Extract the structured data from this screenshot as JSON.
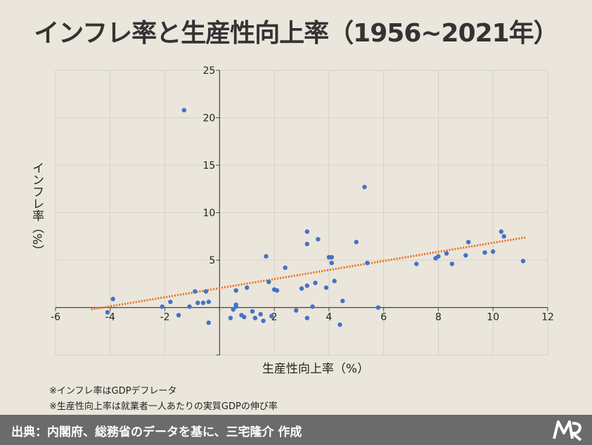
{
  "title": "インフレ率と生産性向上率（1956~2021年）",
  "notes": [
    "※インフレ率はGDPデフレータ",
    "※生産性向上率は就業者一人あたりの実質GDPの伸び率"
  ],
  "footer": {
    "source": "出典：内閣府、総務省のデータを基に、三宅隆介 作成"
  },
  "colors": {
    "background": "#ebe6dc",
    "grid": "#d6d1c6",
    "axis": "#444444",
    "point": "#4472c4",
    "trend": "#e8731c",
    "footer": "#6b6b6b"
  },
  "chart_data": {
    "type": "scatter",
    "xlabel": "生産性向上率（%）",
    "ylabel": "インフレ率（%）",
    "xlim": [
      -6,
      12
    ],
    "ylim": [
      -5,
      25
    ],
    "x_ticks": [
      -6,
      -4,
      -2,
      2,
      4,
      6,
      8,
      10,
      12
    ],
    "y_ticks": [
      5,
      10,
      15,
      20,
      25
    ],
    "grid": true,
    "trendline": {
      "style": "dotted",
      "from": [
        -4.7,
        -0.2
      ],
      "to": [
        11.2,
        7.4
      ]
    },
    "points": [
      [
        -4.1,
        -0.5
      ],
      [
        -3.9,
        0.9
      ],
      [
        -2.1,
        0.1
      ],
      [
        -1.8,
        0.6
      ],
      [
        -1.5,
        -0.8
      ],
      [
        -1.3,
        20.8
      ],
      [
        -1.1,
        0.1
      ],
      [
        -0.9,
        1.7
      ],
      [
        -0.8,
        0.5
      ],
      [
        -0.6,
        0.5
      ],
      [
        -0.5,
        1.7
      ],
      [
        -0.4,
        0.6
      ],
      [
        -0.4,
        -1.6
      ],
      [
        0.4,
        -1.1
      ],
      [
        0.5,
        -0.2
      ],
      [
        0.6,
        0.1
      ],
      [
        0.6,
        0.3
      ],
      [
        0.6,
        1.8
      ],
      [
        0.8,
        -0.8
      ],
      [
        0.9,
        -1.0
      ],
      [
        1.0,
        2.1
      ],
      [
        1.2,
        -0.4
      ],
      [
        1.3,
        -1.1
      ],
      [
        1.5,
        -0.7
      ],
      [
        1.6,
        -1.4
      ],
      [
        1.7,
        5.4
      ],
      [
        1.8,
        2.7
      ],
      [
        1.9,
        -0.9
      ],
      [
        2.0,
        1.9
      ],
      [
        2.1,
        1.8
      ],
      [
        2.4,
        4.2
      ],
      [
        2.8,
        -0.3
      ],
      [
        3.0,
        2.0
      ],
      [
        3.2,
        6.7
      ],
      [
        3.2,
        8.0
      ],
      [
        3.2,
        2.3
      ],
      [
        3.2,
        -1.1
      ],
      [
        3.4,
        0.1
      ],
      [
        3.5,
        2.6
      ],
      [
        3.6,
        7.2
      ],
      [
        3.9,
        2.1
      ],
      [
        4.0,
        5.3
      ],
      [
        4.1,
        4.7
      ],
      [
        4.1,
        5.3
      ],
      [
        4.2,
        2.8
      ],
      [
        4.4,
        -1.8
      ],
      [
        4.5,
        0.7
      ],
      [
        5.0,
        6.9
      ],
      [
        5.3,
        12.7
      ],
      [
        5.4,
        4.7
      ],
      [
        5.8,
        0.0
      ],
      [
        7.2,
        4.6
      ],
      [
        7.9,
        5.2
      ],
      [
        8.0,
        5.4
      ],
      [
        8.3,
        5.7
      ],
      [
        8.5,
        4.6
      ],
      [
        9.0,
        5.5
      ],
      [
        9.1,
        6.9
      ],
      [
        9.7,
        5.8
      ],
      [
        10.0,
        5.9
      ],
      [
        10.3,
        8.0
      ],
      [
        10.4,
        7.5
      ],
      [
        11.1,
        4.9
      ]
    ]
  }
}
